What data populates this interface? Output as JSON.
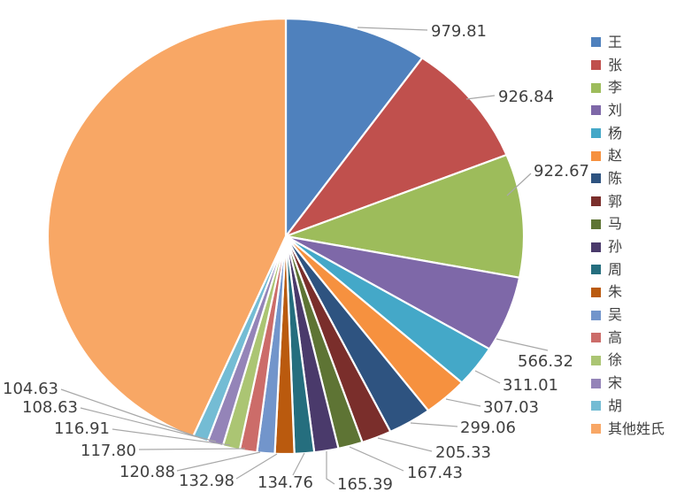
{
  "chart_data": {
    "type": "pie",
    "title": "",
    "legend_position": "right",
    "start_angle_deg": 0,
    "direction": "clockwise",
    "background": "#FFFFFF",
    "label_color": "#404040",
    "leader_line_color": "#A8A8A8",
    "slices": [
      {
        "label": "王",
        "value": 979.81,
        "value_label": "979.81",
        "color": "#4F81BD"
      },
      {
        "label": "张",
        "value": 926.84,
        "value_label": "926.84",
        "color": "#C0504D"
      },
      {
        "label": "李",
        "value": 922.67,
        "value_label": "922.67",
        "color": "#9DBC5B"
      },
      {
        "label": "刘",
        "value": 566.32,
        "value_label": "566.32",
        "color": "#7E68A8"
      },
      {
        "label": "杨",
        "value": 311.01,
        "value_label": "311.01",
        "color": "#44A8C8"
      },
      {
        "label": "赵",
        "value": 307.03,
        "value_label": "307.03",
        "color": "#F6913F"
      },
      {
        "label": "陈",
        "value": 299.06,
        "value_label": "299.06",
        "color": "#2E5380"
      },
      {
        "label": "郭",
        "value": 205.33,
        "value_label": "205.33",
        "color": "#7A2E2B"
      },
      {
        "label": "马",
        "value": 167.43,
        "value_label": "167.43",
        "color": "#5E7434"
      },
      {
        "label": "孙",
        "value": 165.39,
        "value_label": "165.39",
        "color": "#4A3A6B"
      },
      {
        "label": "周",
        "value": 134.76,
        "value_label": "134.76",
        "color": "#256E7E"
      },
      {
        "label": "朱",
        "value": 132.98,
        "value_label": "132.98",
        "color": "#BA5A0E"
      },
      {
        "label": "吴",
        "value": 120.88,
        "value_label": "120.88",
        "color": "#7295CB"
      },
      {
        "label": "高",
        "value": 117.8,
        "value_label": "117.80",
        "color": "#CC6C69"
      },
      {
        "label": "徐",
        "value": 116.91,
        "value_label": "116.91",
        "color": "#ABC573"
      },
      {
        "label": "宋",
        "value": 108.63,
        "value_label": "108.63",
        "color": "#9484B8"
      },
      {
        "label": "胡",
        "value": 104.63,
        "value_label": "104.63",
        "color": "#74BCD4"
      },
      {
        "label": "其他姓氏",
        "value": 4400.0,
        "value_label": "",
        "estimated": true,
        "color": "#F8A765"
      }
    ]
  }
}
